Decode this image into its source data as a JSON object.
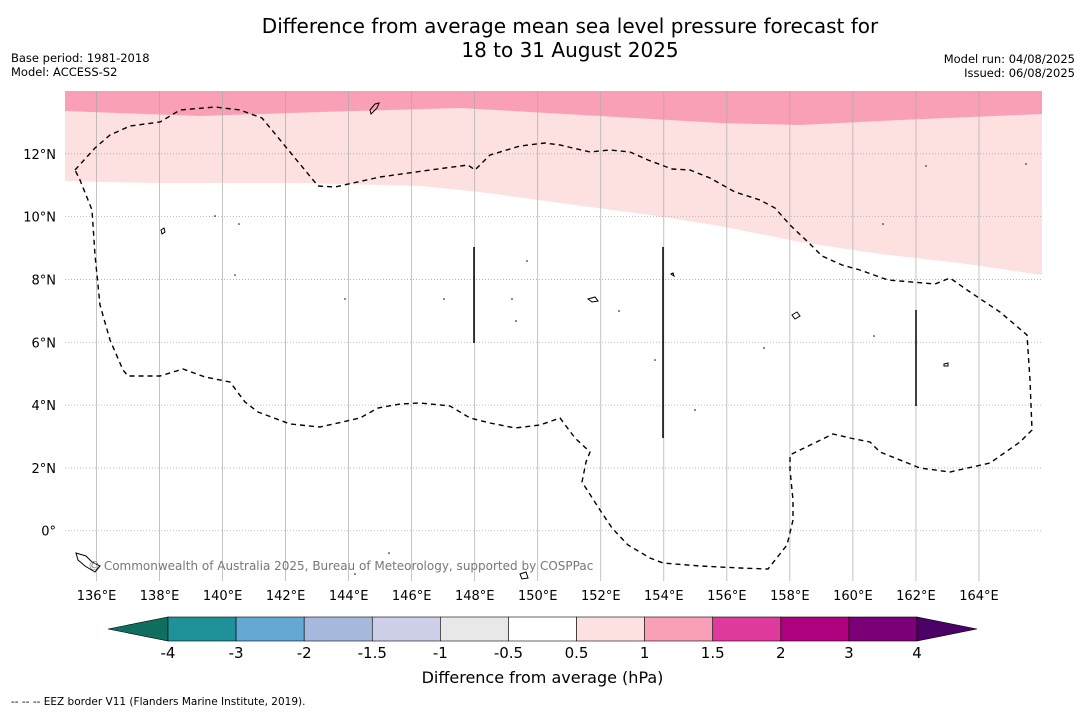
{
  "header": {
    "title_line1": "Difference from average mean sea level pressure forecast for",
    "title_line2": "18 to 31 August 2025",
    "base_period": "Base period: 1981-2018",
    "model": "Model: ACCESS-S2",
    "model_run": "Model run: 04/08/2025",
    "issued": "Issued: 06/08/2025"
  },
  "map": {
    "lon_ticks": [
      "136°E",
      "138°E",
      "140°E",
      "142°E",
      "144°E",
      "146°E",
      "148°E",
      "150°E",
      "152°E",
      "154°E",
      "156°E",
      "158°E",
      "160°E",
      "162°E",
      "164°E"
    ],
    "lat_ticks": [
      "12°N",
      "10°N",
      "8°N",
      "6°N",
      "4°N",
      "2°N",
      "0°"
    ],
    "copyright": "© Commonwealth of Australia 2025, Bureau of Meteorology, supported by COSPPac",
    "shading_colors": {
      "light_pink": "#fde0e0",
      "pink": "#f9a0b7"
    },
    "grid_color": "#aaaaaa",
    "lat_range": [
      -1.6,
      14.0
    ],
    "lon_range": [
      135.0,
      166.0
    ]
  },
  "colorbar": {
    "tick_labels": [
      "-4",
      "-3",
      "-2",
      "-1.5",
      "-1",
      "-0.5",
      "0.5",
      "1",
      "1.5",
      "2",
      "3",
      "4"
    ],
    "colors": [
      "#0f6f5e",
      "#1f9198",
      "#63a9d4",
      "#a5b9dc",
      "#cdcfe9",
      "#e8e8e8",
      "#ffffff",
      "#fde0e0",
      "#f9a0b7",
      "#df3a9c",
      "#ae0180",
      "#7b0078",
      "#4b0068"
    ],
    "label": "Difference from average (hPa)"
  },
  "footnote": "-- -- -- EEZ border V11 (Flanders Marine Institute, 2019)."
}
